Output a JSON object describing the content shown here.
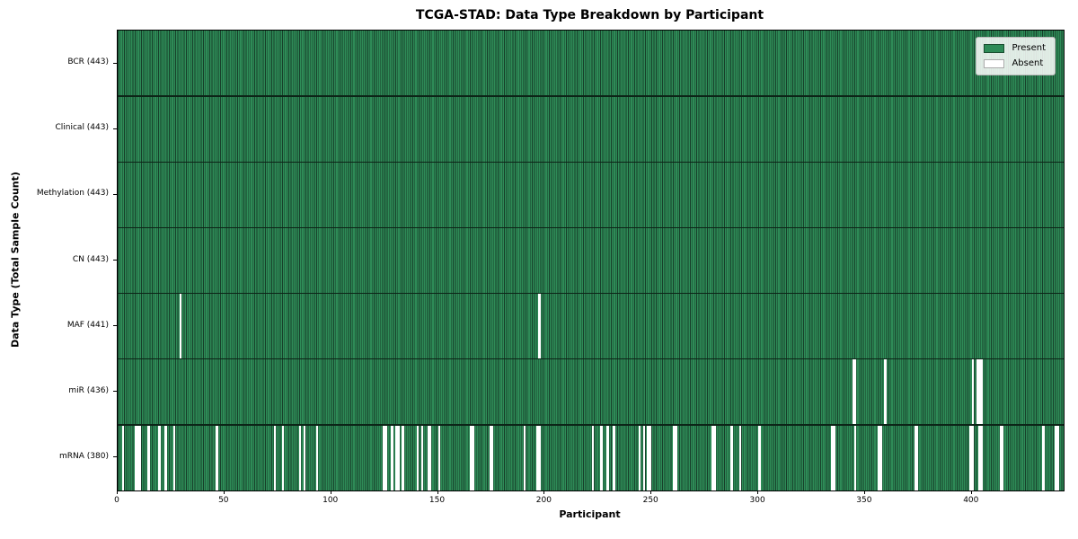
{
  "chart_data": {
    "type": "heatmap",
    "title": "TCGA-STAD: Data Type Breakdown by Participant",
    "xlabel": "Participant",
    "ylabel": "Data Type (Total Sample Count)",
    "x_ticks": [
      0,
      50,
      100,
      150,
      200,
      250,
      300,
      350,
      400
    ],
    "x_range": [
      0,
      443
    ],
    "n_participants": 443,
    "grid": false,
    "legend_position": "upper-right",
    "legend": [
      {
        "label": "Present",
        "color": "#2e8b57"
      },
      {
        "label": "Absent",
        "color": "#ffffff"
      }
    ],
    "colors": {
      "present_fill": "#2e8b57",
      "bar_edge": "#173f2a",
      "absent_fill": "#ffffff",
      "row_separator": "#0c2417"
    },
    "rows": [
      {
        "label": "BCR (443)",
        "name": "BCR",
        "present_count": 443,
        "absent_participants": []
      },
      {
        "label": "Clinical (443)",
        "name": "Clinical",
        "present_count": 443,
        "absent_participants": []
      },
      {
        "label": "Methylation (443)",
        "name": "Methylation",
        "present_count": 443,
        "absent_participants": []
      },
      {
        "label": "CN (443)",
        "name": "CN",
        "present_count": 443,
        "absent_participants": []
      },
      {
        "label": "MAF (441)",
        "name": "MAF",
        "present_count": 441,
        "absent_participants": [
          29,
          197
        ]
      },
      {
        "label": "miR (436)",
        "name": "miR",
        "present_count": 436,
        "absent_participants": [
          344,
          345,
          359,
          400,
          402,
          403,
          404
        ]
      },
      {
        "label": "mRNA (380)",
        "name": "mRNA",
        "present_count": 380,
        "absent_participants": [
          2,
          8,
          9,
          10,
          14,
          19,
          22,
          26,
          46,
          73,
          77,
          85,
          87,
          93,
          124,
          125,
          128,
          130,
          131,
          133,
          140,
          142,
          145,
          146,
          150,
          165,
          166,
          174,
          175,
          190,
          196,
          197,
          222,
          226,
          229,
          232,
          244,
          246,
          248,
          249,
          260,
          261,
          278,
          279,
          287,
          291,
          300,
          334,
          335,
          345,
          356,
          357,
          373,
          374,
          399,
          400,
          403,
          404,
          413,
          414,
          433,
          439,
          440
        ]
      }
    ]
  }
}
